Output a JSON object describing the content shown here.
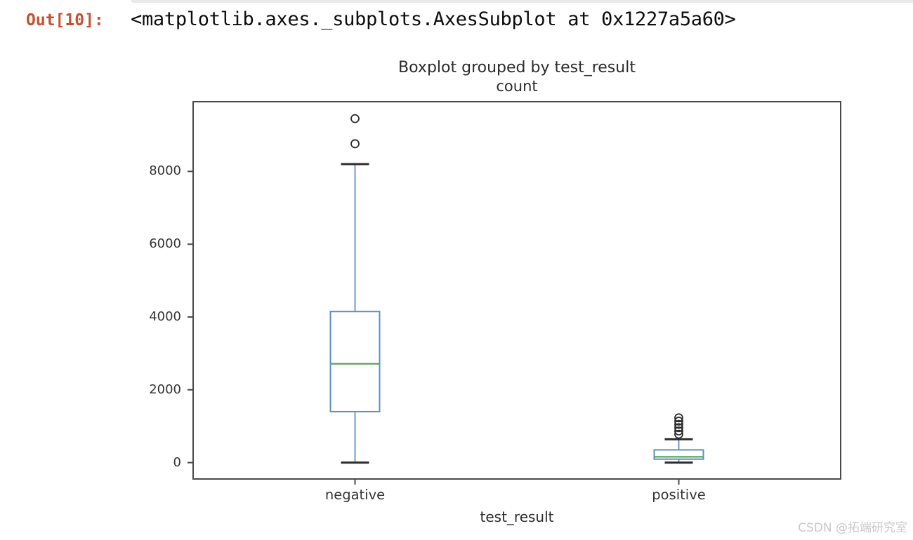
{
  "jupyter": {
    "out_prompt": "Out[10]:",
    "output_repr": "<matplotlib.axes._subplots.AxesSubplot at 0x1227a5a60>"
  },
  "watermark": {
    "text": "CSDN @拓端研究室"
  },
  "colors": {
    "box": "#5a8fc7",
    "whisker": "#5a8fc7",
    "median": "#5fa556",
    "cap": "#2d2d2d",
    "flier": "#2d2d2d",
    "spine": "#4a4a4a",
    "tick_text": "#333333",
    "prompt": "#c6502f"
  },
  "chart_data": {
    "type": "box",
    "title": "Boxplot grouped by test_result",
    "subtitle": "count",
    "xlabel": "test_result",
    "ylabel": "",
    "categories": [
      "negative",
      "positive"
    ],
    "series": [
      {
        "name": "negative",
        "whislo": 0,
        "q1": 1400,
        "med": 2715,
        "q3": 4150,
        "whishi": 8200,
        "fliers": [
          8760,
          9450
        ]
      },
      {
        "name": "positive",
        "whislo": 0,
        "q1": 95,
        "med": 160,
        "q3": 350,
        "whishi": 640,
        "fliers": [
          780,
          870,
          960,
          1050,
          1140,
          1230
        ]
      }
    ],
    "yticks": [
      {
        "value": 0,
        "label": "0"
      },
      {
        "value": 2000,
        "label": "2000"
      },
      {
        "value": 4000,
        "label": "4000"
      },
      {
        "value": 6000,
        "label": "6000"
      },
      {
        "value": 8000,
        "label": "8000"
      }
    ],
    "ylim": [
      -450,
      9915
    ],
    "grid": false,
    "legend": "none"
  }
}
